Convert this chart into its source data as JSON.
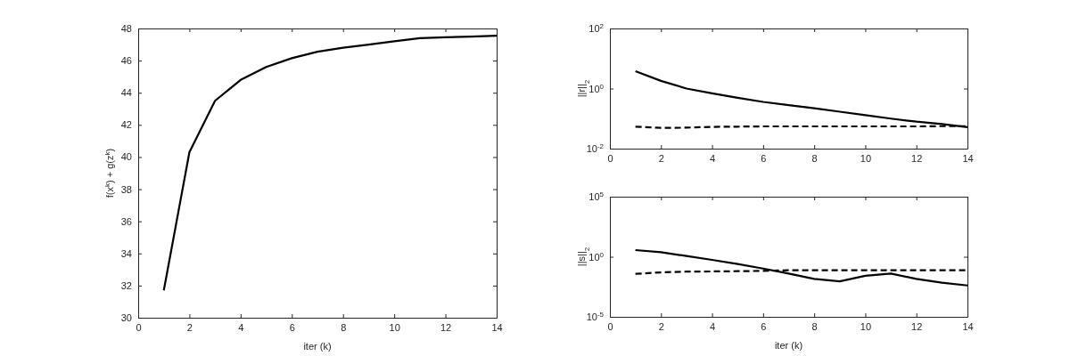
{
  "chart_data": [
    {
      "type": "line",
      "xlabel": "iter (k)",
      "ylabel": "f(x$^{k}$) + g(z$^{k}$)",
      "x": [
        1,
        2,
        3,
        4,
        5,
        6,
        7,
        8,
        9,
        10,
        11,
        12,
        13,
        14
      ],
      "xlim": [
        0,
        14
      ],
      "xticks": [
        0,
        2,
        4,
        6,
        8,
        10,
        12,
        14
      ],
      "ylim": [
        30,
        48
      ],
      "yticks": [
        30,
        32,
        34,
        36,
        38,
        40,
        42,
        44,
        46,
        48
      ],
      "grid": false,
      "series": [
        {
          "color": "#000000",
          "line_style": "solid",
          "values": [
            31.7,
            40.3,
            43.5,
            44.8,
            45.6,
            46.15,
            46.55,
            46.8,
            47.0,
            47.2,
            47.4,
            47.45,
            47.5,
            47.55
          ]
        }
      ]
    },
    {
      "type": "line",
      "ylabel": "||r||$_{2}$",
      "x": [
        1,
        2,
        3,
        4,
        5,
        6,
        7,
        8,
        9,
        10,
        11,
        12,
        13,
        14
      ],
      "xlim": [
        0,
        14
      ],
      "xticks": [
        0,
        2,
        4,
        6,
        8,
        10,
        12,
        14
      ],
      "ylim": [
        0.01,
        100
      ],
      "yticks": [
        {
          "value": 0.01,
          "label": "10$^{-2}$"
        },
        {
          "value": 1,
          "label": "10$^{0}$"
        },
        {
          "value": 100,
          "label": "10$^{2}$"
        }
      ],
      "log": true,
      "grid": false,
      "series": [
        {
          "color": "#000000",
          "line_style": "solid",
          "values": [
            3.8,
            1.8,
            1.0,
            0.69,
            0.49,
            0.36,
            0.28,
            0.22,
            0.17,
            0.13,
            0.1,
            0.079,
            0.066,
            0.052
          ]
        },
        {
          "color": "#000000",
          "line_style": "dashed",
          "values": [
            0.054,
            0.049,
            0.05,
            0.053,
            0.054,
            0.055,
            0.055,
            0.055,
            0.055,
            0.055,
            0.055,
            0.055,
            0.056,
            0.056
          ]
        }
      ]
    },
    {
      "type": "line",
      "xlabel": "iter (k)",
      "ylabel": "||s||$_{2}$",
      "x": [
        1,
        2,
        3,
        4,
        5,
        6,
        7,
        8,
        9,
        10,
        11,
        12,
        13,
        14
      ],
      "xlim": [
        0,
        14
      ],
      "xticks": [
        0,
        2,
        4,
        6,
        8,
        10,
        12,
        14
      ],
      "ylim": [
        1e-05,
        100000
      ],
      "yticks": [
        {
          "value": 1e-05,
          "label": "10$^{-5}$"
        },
        {
          "value": 1,
          "label": "10$^{0}$"
        },
        {
          "value": 100000,
          "label": "10$^{5}$"
        }
      ],
      "log": true,
      "grid": false,
      "series": [
        {
          "color": "#000000",
          "line_style": "solid",
          "values": [
            3.6,
            2.4,
            1.15,
            0.55,
            0.25,
            0.105,
            0.04,
            0.0145,
            0.009,
            0.026,
            0.04,
            0.0145,
            0.0069,
            0.0041
          ]
        },
        {
          "color": "#000000",
          "line_style": "dashed",
          "values": [
            0.038,
            0.05,
            0.058,
            0.06,
            0.063,
            0.067,
            0.075,
            0.075,
            0.075,
            0.075,
            0.075,
            0.075,
            0.075,
            0.075
          ]
        }
      ]
    }
  ]
}
